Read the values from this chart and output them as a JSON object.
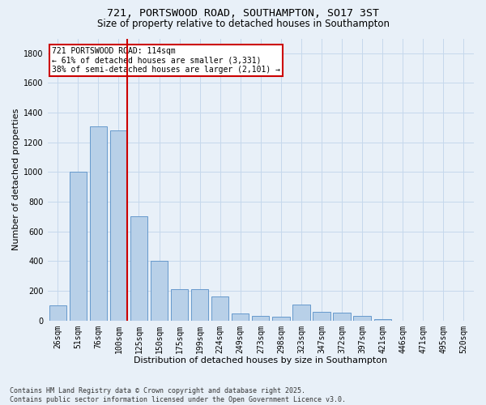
{
  "title_line1": "721, PORTSWOOD ROAD, SOUTHAMPTON, SO17 3ST",
  "title_line2": "Size of property relative to detached houses in Southampton",
  "xlabel": "Distribution of detached houses by size in Southampton",
  "ylabel": "Number of detached properties",
  "categories": [
    "26sqm",
    "51sqm",
    "76sqm",
    "100sqm",
    "125sqm",
    "150sqm",
    "175sqm",
    "199sqm",
    "224sqm",
    "249sqm",
    "273sqm",
    "298sqm",
    "323sqm",
    "347sqm",
    "372sqm",
    "397sqm",
    "421sqm",
    "446sqm",
    "471sqm",
    "495sqm",
    "520sqm"
  ],
  "values": [
    100,
    1000,
    1310,
    1280,
    700,
    400,
    210,
    210,
    160,
    50,
    30,
    25,
    105,
    60,
    55,
    30,
    10,
    0,
    0,
    0,
    0
  ],
  "bar_color": "#b8d0e8",
  "bar_edge_color": "#6699cc",
  "vline_x_index": 3,
  "vline_color": "#cc0000",
  "annotation_text": "721 PORTSWOOD ROAD: 114sqm\n← 61% of detached houses are smaller (3,331)\n38% of semi-detached houses are larger (2,101) →",
  "annotation_box_color": "#ffffff",
  "annotation_box_edge": "#cc0000",
  "ylim": [
    0,
    1900
  ],
  "yticks": [
    0,
    200,
    400,
    600,
    800,
    1000,
    1200,
    1400,
    1600,
    1800
  ],
  "grid_color": "#c5d8ec",
  "background_color": "#e8f0f8",
  "plot_bg_color": "#e8f0f8",
  "footer": "Contains HM Land Registry data © Crown copyright and database right 2025.\nContains public sector information licensed under the Open Government Licence v3.0.",
  "title_fontsize": 9.5,
  "subtitle_fontsize": 8.5,
  "axis_label_fontsize": 8,
  "tick_fontsize": 7,
  "footer_fontsize": 6,
  "annotation_fontsize": 7
}
